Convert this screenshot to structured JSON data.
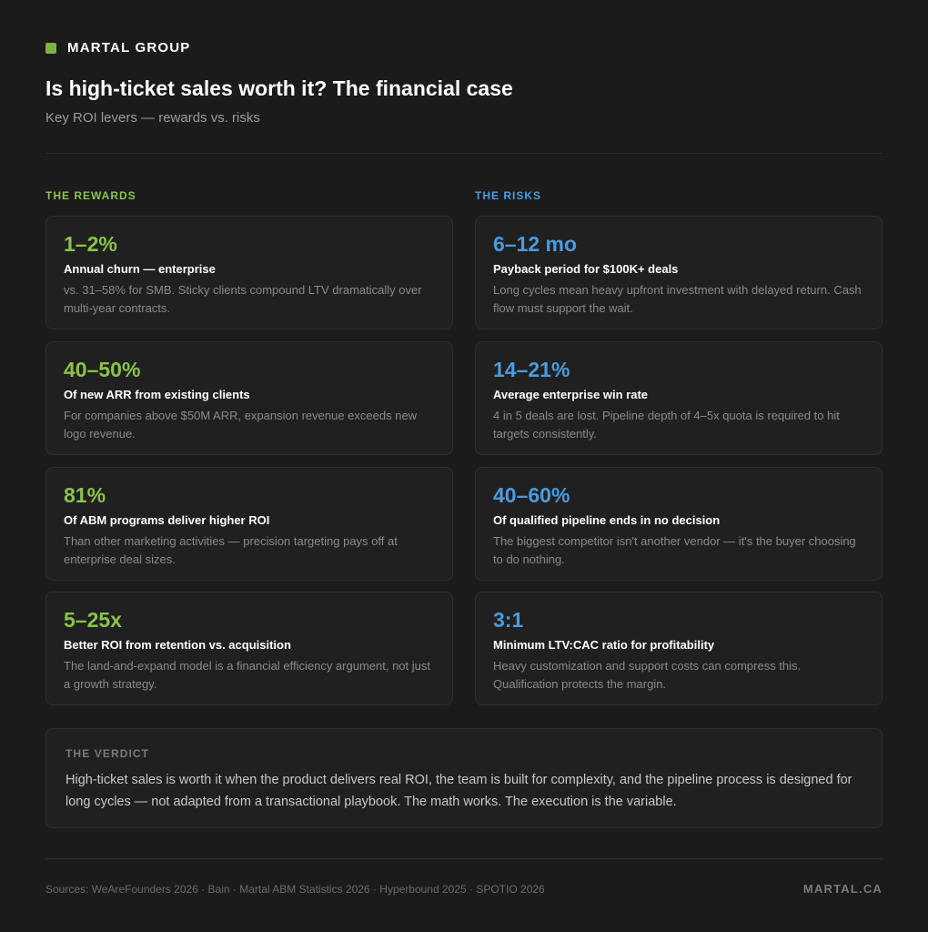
{
  "brand": {
    "name": "MARTAL GROUP",
    "accent": "#7cb342"
  },
  "header": {
    "title": "Is high-ticket sales worth it? The financial case",
    "subtitle": "Key ROI levers — rewards vs. risks"
  },
  "rewards": {
    "heading": "THE REWARDS",
    "color": "#8bc34a",
    "items": [
      {
        "stat": "1–2%",
        "label": "Annual churn — enterprise",
        "desc": "vs. 31–58% for SMB. Sticky clients compound LTV dramatically over multi-year contracts."
      },
      {
        "stat": "40–50%",
        "label": "Of new ARR from existing clients",
        "desc": "For companies above $50M ARR, expansion revenue exceeds new logo revenue."
      },
      {
        "stat": "81%",
        "label": "Of ABM programs deliver higher ROI",
        "desc": "Than other marketing activities — precision targeting pays off at enterprise deal sizes."
      },
      {
        "stat": "5–25x",
        "label": "Better ROI from retention vs. acquisition",
        "desc": "The land-and-expand model is a financial efficiency argument, not just a growth strategy."
      }
    ]
  },
  "risks": {
    "heading": "THE RISKS",
    "color": "#4a9be0",
    "items": [
      {
        "stat": "6–12 mo",
        "label": "Payback period for $100K+ deals",
        "desc": "Long cycles mean heavy upfront investment with delayed return. Cash flow must support the wait."
      },
      {
        "stat": "14–21%",
        "label": "Average enterprise win rate",
        "desc": "4 in 5 deals are lost. Pipeline depth of 4–5x quota is required to hit targets consistently."
      },
      {
        "stat": "40–60%",
        "label": "Of qualified pipeline ends in no decision",
        "desc": "The biggest competitor isn't another vendor — it's the buyer choosing to do nothing."
      },
      {
        "stat": "3:1",
        "label": "Minimum LTV:CAC ratio for profitability",
        "desc": "Heavy customization and support costs can compress this. Qualification protects the margin."
      }
    ]
  },
  "verdict": {
    "heading": "THE VERDICT",
    "text": "High-ticket sales is worth it when the product delivers real ROI, the team is built for complexity, and the pipeline process is designed for long cycles — not adapted from a transactional playbook. The math works. The execution is the variable."
  },
  "footer": {
    "sources": "Sources: WeAreFounders 2026 · Bain · Martal ABM Statistics 2026 · Hyperbound 2025 · SPOTIO 2026",
    "site": "MARTAL.CA"
  }
}
